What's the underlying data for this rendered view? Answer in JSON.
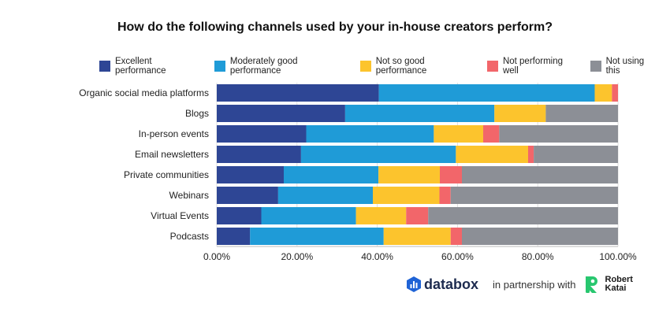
{
  "chart_data": {
    "type": "bar",
    "orientation": "horizontal",
    "stacked": true,
    "title": "How do the following channels used by your in-house creators perform?",
    "categories": [
      "Organic social media platforms",
      "Blogs",
      "In-person events",
      "Email newsletters",
      "Private communities",
      "Webinars",
      "Virtual Events",
      "Podcasts"
    ],
    "series": [
      {
        "name": "Excellent performance",
        "color": "#2e4695",
        "values": [
          40.4,
          32.0,
          22.3,
          21.0,
          16.7,
          15.3,
          11.1,
          8.3
        ]
      },
      {
        "name": "Moderately good performance",
        "color": "#1f9bd7",
        "values": [
          53.8,
          37.2,
          31.8,
          38.6,
          23.6,
          23.6,
          23.6,
          33.3
        ]
      },
      {
        "name": "Not so good performance",
        "color": "#fcc42d",
        "values": [
          4.3,
          12.8,
          12.3,
          18.0,
          15.3,
          16.6,
          12.5,
          16.7
        ]
      },
      {
        "name": "Not performing well",
        "color": "#f2666a",
        "values": [
          1.5,
          0.0,
          4.0,
          1.4,
          5.5,
          2.8,
          5.5,
          2.8
        ]
      },
      {
        "name": "Not using this",
        "color": "#8c8f96",
        "values": [
          0.0,
          18.0,
          29.6,
          21.0,
          38.9,
          41.7,
          47.3,
          38.9
        ]
      }
    ],
    "xaxis": {
      "ticks": [
        0,
        20,
        40,
        60,
        80,
        100
      ],
      "tick_labels": [
        "0.00%",
        "20.00%",
        "40.00%",
        "60.00%",
        "80.00%",
        "100.00%"
      ],
      "range": [
        0,
        100
      ]
    },
    "legend_position": "top"
  },
  "footer": {
    "databox_label": "databox",
    "partner_text": "in partnership with",
    "partner_name_line1": "Robert",
    "partner_name_line2": "Katai"
  }
}
